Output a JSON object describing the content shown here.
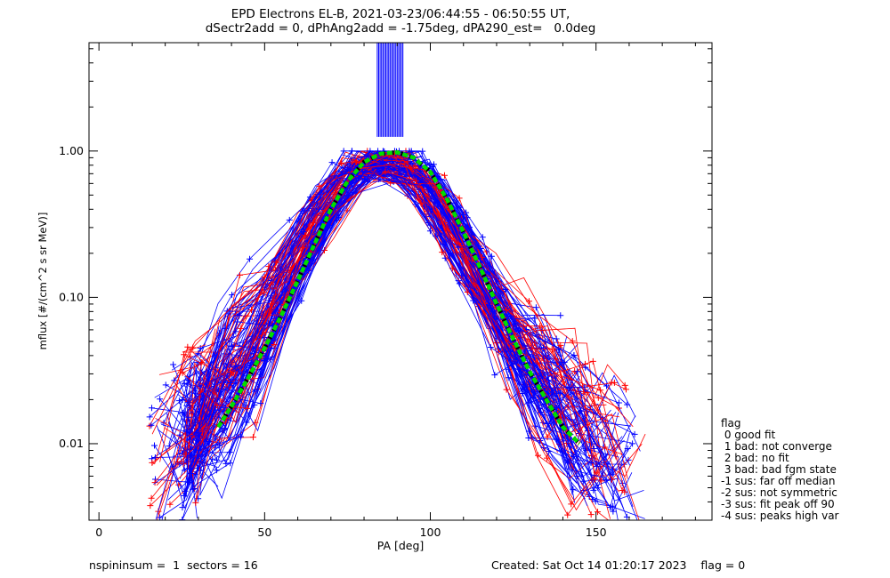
{
  "header": {
    "title_line1": "EPD Electrons EL-B, 2021-03-23/06:44:55 - 06:50:55 UT,",
    "title_line2": "dSectr2add = 0, dPhAng2add = -1.75deg, dPA290_est=   0.0deg"
  },
  "footer": {
    "left": "nspininsum =  1  sectors = 16",
    "right": "Created: Sat Oct 14 01:20:17 2023    flag = 0"
  },
  "legend": {
    "title": "flag",
    "items": [
      " 0 good fit",
      " 1 bad: not converge",
      " 2 bad: no fit",
      " 3 bad: bad fgm state",
      "-1 sus: far off median",
      "-2 sus: not symmetric",
      "-3 sus: fit peak off 90",
      "-4 sus: peaks high var"
    ]
  },
  "colors": {
    "series_a": "#ff0000",
    "series_b": "#0000ff",
    "fit": "#00dd00",
    "fit_dots": "#000000"
  },
  "chart_data": {
    "type": "line",
    "xlabel": "PA [deg]",
    "ylabel": "mflux [#/(cm^2 s sr MeV)]",
    "xlim": [
      -3,
      185
    ],
    "ylim": [
      0.003,
      5.5
    ],
    "yscale": "log",
    "x_ticks": [
      0,
      50,
      100,
      150
    ],
    "x_tick_labels": [
      "0",
      "50",
      "100",
      "150"
    ],
    "y_ticks": [
      0.01,
      0.1,
      1.0
    ],
    "y_tick_labels": [
      "0.01",
      "0.10",
      "1.00"
    ],
    "grid": false,
    "fit_curve": {
      "x": [
        36,
        40,
        45,
        50,
        55,
        60,
        65,
        70,
        75,
        80,
        85,
        90,
        95,
        100,
        105,
        110,
        115,
        120,
        125,
        130,
        135,
        140,
        145
      ],
      "y": [
        0.013,
        0.018,
        0.028,
        0.045,
        0.075,
        0.13,
        0.23,
        0.4,
        0.62,
        0.84,
        0.96,
        0.98,
        0.9,
        0.72,
        0.47,
        0.28,
        0.16,
        0.09,
        0.052,
        0.031,
        0.02,
        0.013,
        0.01
      ]
    },
    "envelope": {
      "x": [
        15,
        25,
        35,
        45,
        55,
        65,
        75,
        80,
        85,
        95,
        100,
        110,
        120,
        130,
        140,
        150,
        165
      ],
      "y": [
        0.008,
        0.012,
        0.02,
        0.04,
        0.11,
        0.3,
        0.7,
        0.88,
        0.8,
        0.8,
        0.55,
        0.22,
        0.08,
        0.035,
        0.018,
        0.01,
        0.007
      ]
    },
    "spike_x_range": [
      84,
      92
    ]
  }
}
